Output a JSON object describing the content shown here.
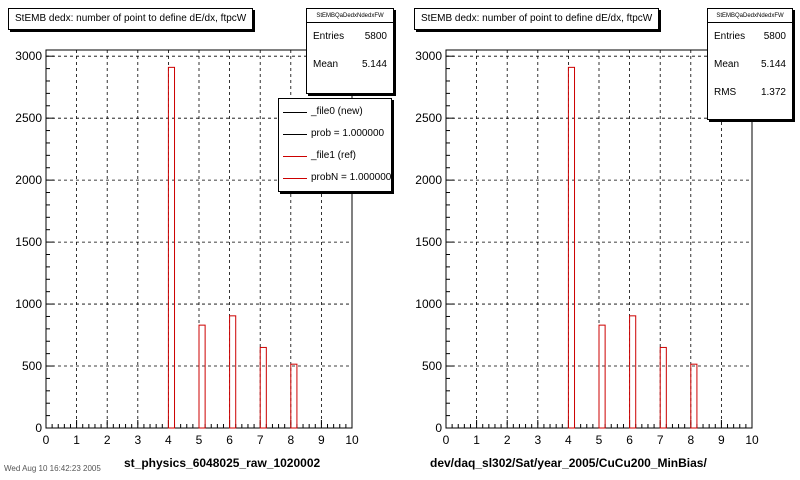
{
  "footer_text": "Wed Aug 10 16:42:23 2005",
  "chart_data": [
    {
      "type": "bar",
      "title": "StEMB dedx: number of point to define dE/dx, ftpcW",
      "xlabel": "st_physics_6048025_raw_1020002",
      "ylabel": "",
      "xlim": [
        0,
        10
      ],
      "ylim": [
        0,
        3050
      ],
      "x_ticks": [
        0,
        1,
        2,
        3,
        4,
        5,
        6,
        7,
        8,
        9,
        10
      ],
      "y_ticks": [
        0,
        500,
        1000,
        1500,
        2000,
        2500,
        3000
      ],
      "grid": true,
      "bin_width": 0.2,
      "series": [
        {
          "name": "_file1 (ref)",
          "color": "#cc0000",
          "bins": [
            {
              "x": 4,
              "value": 2910
            },
            {
              "x": 5,
              "value": 830
            },
            {
              "x": 6,
              "value": 905
            },
            {
              "x": 7,
              "value": 650
            },
            {
              "x": 8,
              "value": 515
            }
          ]
        }
      ],
      "stats": {
        "name": "StEMBQaDedxNdedxFW",
        "rows": [
          {
            "label": "Entries",
            "value": "5800"
          },
          {
            "label": "Mean",
            "value": "5.144"
          }
        ]
      },
      "legend": {
        "placement": "top-right",
        "entries": [
          {
            "label": "_file0 (new)",
            "color": "#000000"
          },
          {
            "label": "prob = 1.000000",
            "color": "#000000"
          },
          {
            "label": "_file1 (ref)",
            "color": "#cc0000"
          },
          {
            "label": "probN = 1.000000",
            "color": "#cc0000"
          }
        ]
      }
    },
    {
      "type": "bar",
      "title": "StEMB dedx: number of point to define dE/dx, ftpcW",
      "xlabel": "dev/daq_sl302/Sat/year_2005/CuCu200_MinBias/",
      "ylabel": "",
      "xlim": [
        0,
        10
      ],
      "ylim": [
        0,
        3050
      ],
      "x_ticks": [
        0,
        1,
        2,
        3,
        4,
        5,
        6,
        7,
        8,
        9,
        10
      ],
      "y_ticks": [
        0,
        500,
        1000,
        1500,
        2000,
        2500,
        3000
      ],
      "grid": true,
      "bin_width": 0.2,
      "series": [
        {
          "name": "",
          "color": "#cc0000",
          "bins": [
            {
              "x": 4,
              "value": 2910
            },
            {
              "x": 5,
              "value": 830
            },
            {
              "x": 6,
              "value": 905
            },
            {
              "x": 7,
              "value": 650
            },
            {
              "x": 8,
              "value": 515
            }
          ]
        }
      ],
      "stats": {
        "name": "StEMBQaDedxNdedxFW",
        "rows": [
          {
            "label": "Entries",
            "value": "5800"
          },
          {
            "label": "Mean",
            "value": "5.144"
          },
          {
            "label": "RMS",
            "value": "1.372"
          }
        ]
      }
    }
  ]
}
